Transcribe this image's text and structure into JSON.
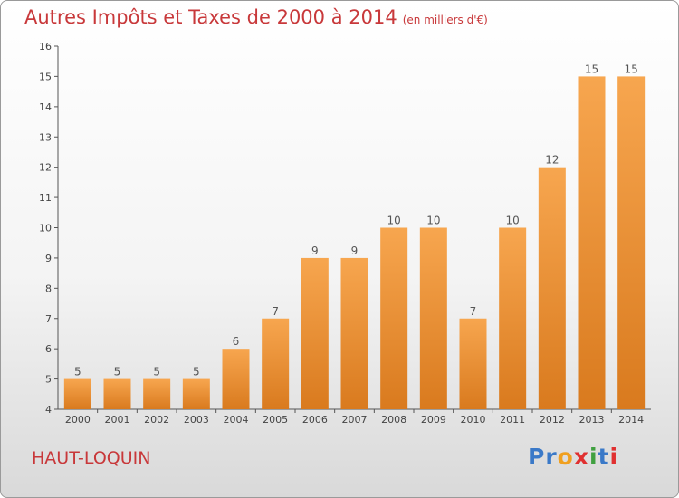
{
  "header": {
    "title": "Autres Impôts et Taxes de 2000 à 2014",
    "unit": "(en milliers d'€)"
  },
  "footer": {
    "place": "HAUT-LOQUIN",
    "logo_letters": [
      {
        "ch": "P",
        "color": "#3a79c8"
      },
      {
        "ch": "r",
        "color": "#3a79c8"
      },
      {
        "ch": "o",
        "color": "#f0a020"
      },
      {
        "ch": "x",
        "color": "#e03030"
      },
      {
        "ch": "i",
        "color": "#40a040"
      },
      {
        "ch": "t",
        "color": "#3a79c8"
      },
      {
        "ch": "i",
        "color": "#e03030"
      }
    ]
  },
  "colors": {
    "bar_top": "#f7a64f",
    "bar_bottom": "#d97a1e",
    "title": "#c8383a",
    "axis": "#555555"
  },
  "chart_data": {
    "type": "bar",
    "title": "Autres Impôts et Taxes de 2000 à 2014",
    "subtitle": "(en milliers d'€)",
    "categories": [
      "2000",
      "2001",
      "2002",
      "2003",
      "2004",
      "2005",
      "2006",
      "2007",
      "2008",
      "2009",
      "2010",
      "2011",
      "2012",
      "2013",
      "2014"
    ],
    "values": [
      5,
      5,
      5,
      5,
      6,
      7,
      9,
      9,
      10,
      10,
      7,
      10,
      12,
      15,
      15
    ],
    "ylim": [
      4,
      16
    ],
    "yticks": [
      4,
      5,
      6,
      7,
      8,
      9,
      10,
      11,
      12,
      13,
      14,
      15,
      16
    ],
    "grid": false,
    "legend": "none"
  }
}
